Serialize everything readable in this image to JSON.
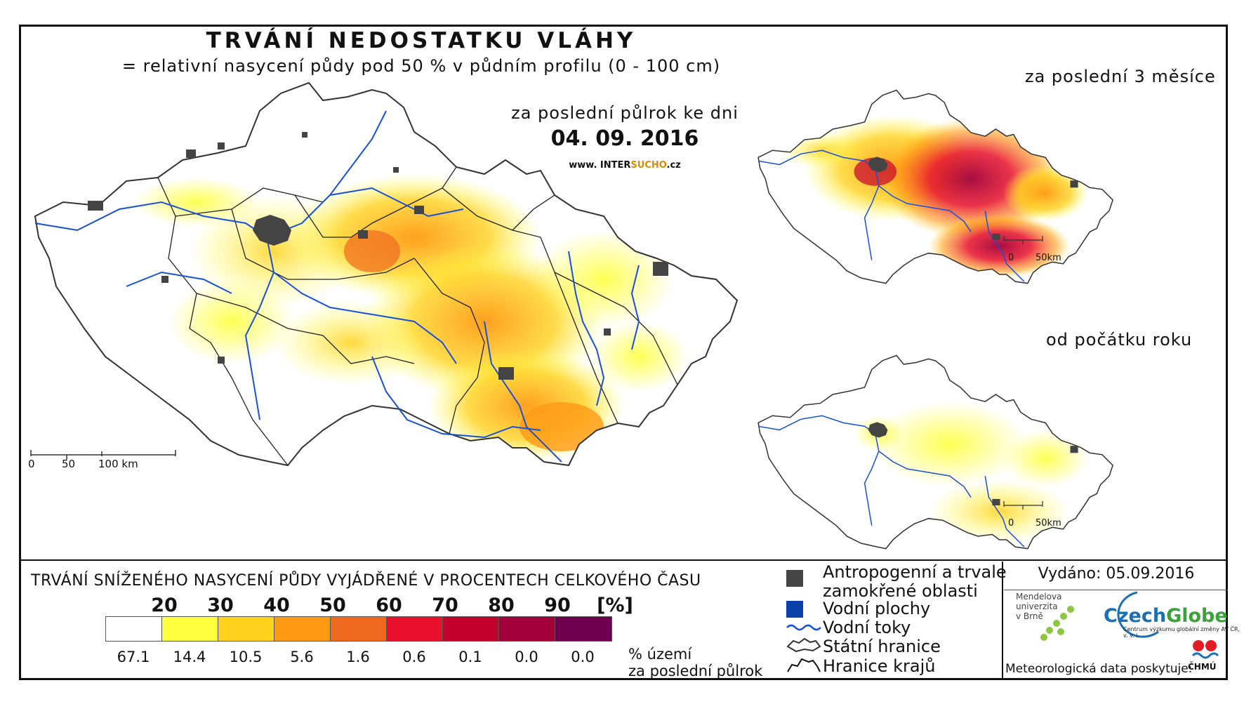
{
  "header": {
    "title": "TRVÁNÍ NEDOSTATKU VLÁHY",
    "subtitle": "= relativní nasycení půdy pod 50 % v půdním profilu (0 - 100 cm)",
    "period": "za poslední půlrok ke dni",
    "date": "04. 09. 2016",
    "website_prefix": "www. INTER",
    "website_highlight": "SUCHO",
    "website_suffix": ".cz"
  },
  "inset_maps": {
    "three_months_label": "za poslední 3 měsíce",
    "year_start_label": "od počátku roku",
    "scale_zero": "0",
    "scale_km": "50km"
  },
  "main_scale": {
    "zero": "0",
    "mid": "50",
    "end": "100 km"
  },
  "legend": {
    "title": "TRVÁNÍ SNÍŽENÉHO NASYCENÍ PŮDY VYJÁDŘENÉ V PROCENTECH CELKOVÉHO ČASU",
    "ticks": [
      "20",
      "30",
      "40",
      "50",
      "60",
      "70",
      "80",
      "90",
      "[%]"
    ],
    "colors": [
      "#ffffff",
      "#ffff40",
      "#ffd21e",
      "#ff9a14",
      "#ef6a1e",
      "#e8102a",
      "#c4002c",
      "#a3003a",
      "#700050"
    ],
    "percent_values": [
      "67.1",
      "14.4",
      "10.5",
      "5.6",
      "1.6",
      "0.6",
      "0.1",
      "0.0",
      "0.0"
    ],
    "percent_label_line1": "% území",
    "percent_label_line2": "za poslední půlrok"
  },
  "symbols": {
    "urban_line1": "Antropogenní a trvale",
    "urban_line2": "zamokřené oblasti",
    "water_bodies": "Vodní plochy",
    "rivers": "Vodní toky",
    "state_border": "Státní hranice",
    "region_border": "Hranice krajů",
    "urban_color": "#444444",
    "water_color": "#0a3fa8",
    "river_color": "#1850d8"
  },
  "credits": {
    "issued": "Vydáno: 05.09.2016",
    "mendel_line1": "Mendelova",
    "mendel_line2": "univerzita",
    "mendel_line3": "v Brně",
    "czechglobe_a": "Czech",
    "czechglobe_b": "Globe",
    "czechglobe_sub": "Centrum výzkumu globální změny AV ČR, v. v. i.",
    "meteo": "Meteorologická data poskytuje:",
    "chmu": "ČHMÚ"
  }
}
